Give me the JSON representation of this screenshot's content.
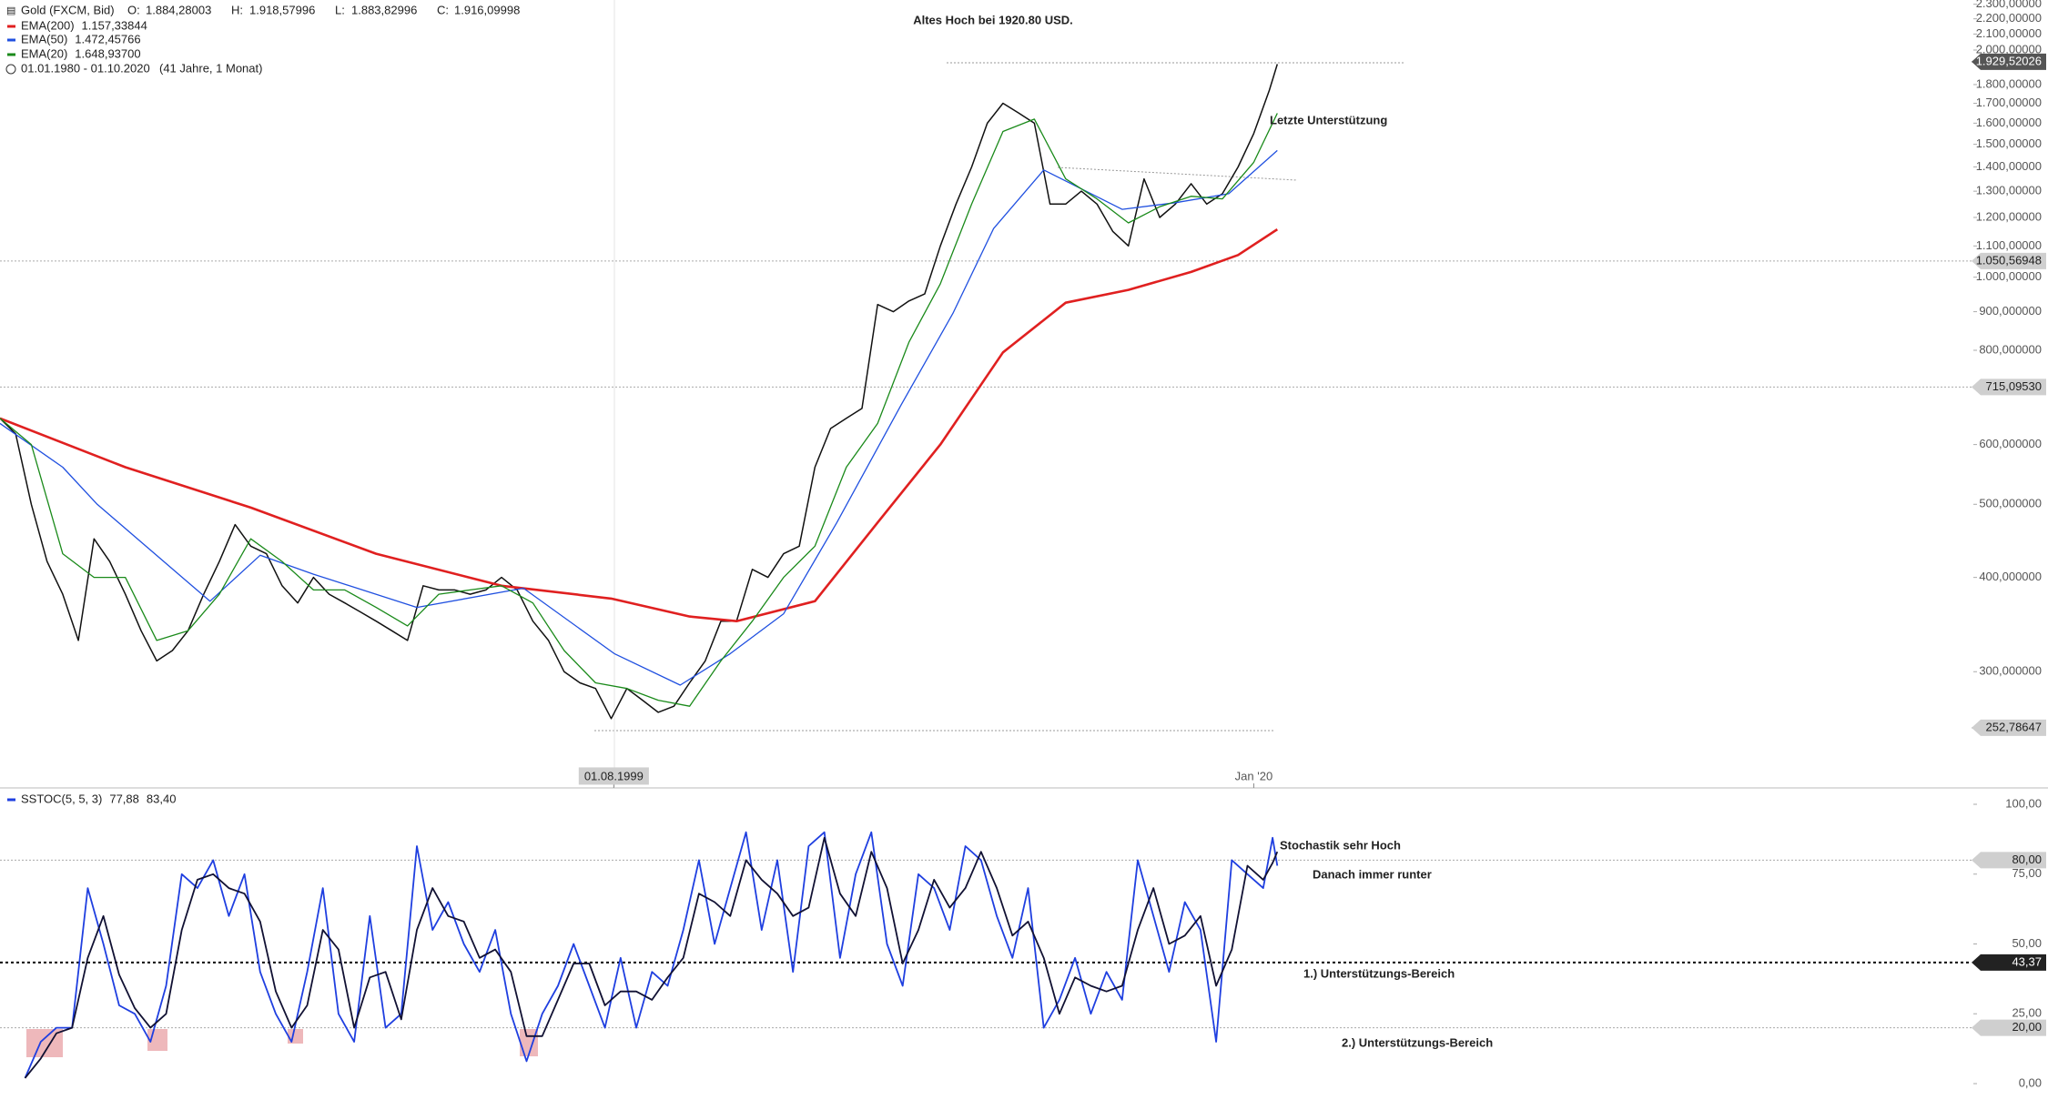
{
  "header": {
    "ohlc": [
      {
        "label": "O:",
        "value": "1.884,28003"
      },
      {
        "label": "H:",
        "value": "1.918,57996"
      },
      {
        "label": "L:",
        "value": "1.883,82996"
      },
      {
        "label": "C:",
        "value": "1.916,09998"
      }
    ],
    "range": "01.01.1980 - 01.10.2020",
    "duration": "(41 Jahre, 1 Monat)"
  },
  "chart_data": [
    {
      "type": "line",
      "log_y": true,
      "grid": false,
      "xlim": [
        1980,
        2042.9
      ],
      "ylim": [
        211,
        2330
      ],
      "xticks": [
        {
          "value": 1999.583,
          "label": "01.08.1999"
        },
        {
          "value": 2020,
          "label": "Jan '20"
        }
      ],
      "yticks": [
        {
          "value": 300,
          "label": "300,000000"
        },
        {
          "value": 400,
          "label": "400,000000"
        },
        {
          "value": 500,
          "label": "500,000000"
        },
        {
          "value": 600,
          "label": "600,000000"
        },
        {
          "value": 800,
          "label": "800,000000"
        },
        {
          "value": 900,
          "label": "900,000000"
        },
        {
          "value": 1000,
          "label": "1.000,00000"
        },
        {
          "value": 1100,
          "label": "1.100,00000"
        },
        {
          "value": 1200,
          "label": "1.200,00000"
        },
        {
          "value": 1300,
          "label": "1.300,00000"
        },
        {
          "value": 1400,
          "label": "1.400,00000"
        },
        {
          "value": 1500,
          "label": "1.500,00000"
        },
        {
          "value": 1600,
          "label": "1.600,00000"
        },
        {
          "value": 1700,
          "label": "1.700,00000"
        },
        {
          "value": 1800,
          "label": "1.800,00000"
        },
        {
          "value": 2000,
          "label": "2.000,00000"
        },
        {
          "value": 2100,
          "label": "2.100,00000"
        },
        {
          "value": 2200,
          "label": "2.200,00000"
        },
        {
          "value": 2300,
          "label": "2.300,00000"
        }
      ],
      "levels": [
        {
          "value": 1929.52026,
          "label": "1.929,52026",
          "highlight": true,
          "full_line": false
        },
        {
          "value": 1050.56948,
          "label": "1.050,56948",
          "highlight": false,
          "full_line": true
        },
        {
          "value": 715.0953,
          "label": "715,09530",
          "highlight": false,
          "full_line": true
        },
        {
          "value": 252.78647,
          "label": "252,78647",
          "highlight": false,
          "full_line": false
        }
      ],
      "annotations": [
        "Altes Hoch bei 1920.80 USD.",
        "Letzte Unterstützung"
      ],
      "series": [
        {
          "name": "Gold (FXCM, Bid)",
          "color": "#111111",
          "x": [
            1980,
            1980.5,
            1981,
            1981.5,
            1982,
            1982.5,
            1983,
            1983.5,
            1984,
            1984.5,
            1985,
            1985.5,
            1986,
            1986.5,
            1987,
            1987.5,
            1988,
            1988.5,
            1989,
            1989.5,
            1990,
            1990.5,
            1991,
            1991.5,
            1992,
            1992.5,
            1993,
            1993.5,
            1994,
            1994.5,
            1995,
            1995.5,
            1996,
            1996.5,
            1997,
            1997.5,
            1998,
            1998.5,
            1999,
            1999.5,
            2000,
            2000.5,
            2001,
            2001.5,
            2002,
            2002.5,
            2003,
            2003.5,
            2004,
            2004.5,
            2005,
            2005.5,
            2006,
            2006.5,
            2007,
            2007.5,
            2008,
            2008.5,
            2009,
            2009.5,
            2010,
            2010.5,
            2011,
            2011.5,
            2012,
            2012.5,
            2013,
            2013.5,
            2014,
            2014.5,
            2015,
            2015.5,
            2016,
            2016.5,
            2017,
            2017.5,
            2018,
            2018.5,
            2019,
            2019.5,
            2020,
            2020.5,
            2020.75
          ],
          "values": [
            650,
            620,
            500,
            420,
            380,
            330,
            450,
            420,
            380,
            340,
            310,
            320,
            340,
            380,
            420,
            470,
            440,
            430,
            390,
            370,
            400,
            380,
            370,
            360,
            350,
            340,
            330,
            390,
            385,
            385,
            380,
            385,
            400,
            385,
            350,
            330,
            300,
            290,
            285,
            260,
            285,
            275,
            265,
            270,
            290,
            310,
            350,
            350,
            410,
            400,
            430,
            440,
            560,
            630,
            650,
            670,
            920,
            900,
            930,
            950,
            1100,
            1250,
            1400,
            1600,
            1700,
            1650,
            1600,
            1250,
            1250,
            1300,
            1250,
            1150,
            1100,
            1350,
            1200,
            1250,
            1330,
            1250,
            1290,
            1400,
            1550,
            1770,
            1916
          ]
        },
        {
          "name": "EMA(200)",
          "value_label": "1.157,33844",
          "color": "#e02020",
          "width": 2.6,
          "x": [
            1980,
            1984,
            1988,
            1992,
            1996,
            1999.5,
            2002,
            2003.5,
            2006,
            2008,
            2010,
            2012,
            2014,
            2016,
            2018,
            2019.5,
            2020.75
          ],
          "values": [
            650,
            560,
            495,
            430,
            390,
            375,
            355,
            350,
            372,
            473,
            600,
            795,
            925,
            962,
            1016,
            1070,
            1157
          ]
        },
        {
          "name": "EMA(50)",
          "value_label": "1.472,45766",
          "color": "#2050e0",
          "width": 1.3,
          "x": [
            1980,
            1982,
            1983.1,
            1986.7,
            1988.3,
            1990,
            1993.3,
            1996.7,
            1999.6,
            2001.7,
            2003.3,
            2005,
            2006.7,
            2008.75,
            2010.4,
            2011.7,
            2013.3,
            2015.8,
            2017.5,
            2019.2,
            2020.75
          ],
          "values": [
            640,
            560,
            500,
            372,
            428,
            404,
            365,
            387,
            317,
            288,
            317,
            358,
            473,
            677,
            895,
            1160,
            1387,
            1230,
            1255,
            1290,
            1472
          ]
        },
        {
          "name": "EMA(20)",
          "value_label": "1.648,93700",
          "color": "#1a8a1a",
          "width": 1.3,
          "x": [
            1980,
            1981,
            1982,
            1983,
            1984,
            1985,
            1986,
            1987,
            1988,
            1989,
            1990,
            1991,
            1992,
            1993,
            1994,
            1995,
            1996,
            1997,
            1998,
            1999,
            2000,
            2001,
            2002,
            2003,
            2004,
            2005,
            2006,
            2007,
            2008,
            2009,
            2010,
            2011,
            2012,
            2013,
            2014,
            2015,
            2016,
            2017,
            2018,
            2019,
            2020,
            2020.75
          ],
          "values": [
            650,
            600,
            430,
            400,
            400,
            330,
            340,
            380,
            450,
            420,
            385,
            385,
            365,
            345,
            380,
            385,
            390,
            370,
            320,
            290,
            285,
            275,
            270,
            310,
            350,
            400,
            440,
            560,
            640,
            820,
            980,
            1250,
            1560,
            1620,
            1350,
            1270,
            1180,
            1240,
            1280,
            1270,
            1420,
            1649
          ]
        }
      ]
    },
    {
      "type": "line",
      "log_y": false,
      "grid": false,
      "xlim": [
        1980,
        2042.9
      ],
      "ylim": [
        0,
        100
      ],
      "yticks": [
        {
          "value": 0,
          "label": "0,00"
        },
        {
          "value": 25,
          "label": "25,00"
        },
        {
          "value": 50,
          "label": "50,00"
        },
        {
          "value": 75,
          "label": "75,00"
        },
        {
          "value": 100,
          "label": "100,00"
        }
      ],
      "levels": [
        {
          "value": 80,
          "label": "80,00",
          "highlight": false,
          "full_line": true
        },
        {
          "value": 43.37,
          "label": "43,37",
          "highlight": true,
          "full_line": true
        },
        {
          "value": 20,
          "label": "20,00",
          "highlight": false,
          "full_line": true
        }
      ],
      "annotations": [
        "Stochastik sehr Hoch",
        "Danach immer runter",
        "1.) Unterstützungs-Bereich",
        "2.) Unterstützungs-Bereich"
      ],
      "series": [
        {
          "name": "SSTOC(5, 5, 3)",
          "value_label": "77,88",
          "color": "#1f3fe0",
          "width": 1.8,
          "x": [
            1980.8,
            1981.3,
            1981.8,
            1982.3,
            1982.8,
            1983.3,
            1983.8,
            1984.3,
            1984.8,
            1985.3,
            1985.8,
            1986.3,
            1986.8,
            1987.3,
            1987.8,
            1988.3,
            1988.8,
            1989.3,
            1989.8,
            1990.3,
            1990.8,
            1991.3,
            1991.8,
            1992.3,
            1992.8,
            1993.3,
            1993.8,
            1994.3,
            1994.8,
            1995.3,
            1995.8,
            1996.3,
            1996.8,
            1997.3,
            1997.8,
            1998.3,
            1998.8,
            1999.3,
            1999.8,
            2000.3,
            2000.8,
            2001.3,
            2001.8,
            2002.3,
            2002.8,
            2003.3,
            2003.8,
            2004.3,
            2004.8,
            2005.3,
            2005.8,
            2006.3,
            2006.8,
            2007.3,
            2007.8,
            2008.3,
            2008.8,
            2009.3,
            2009.8,
            2010.3,
            2010.8,
            2011.3,
            2011.8,
            2012.3,
            2012.8,
            2013.3,
            2013.8,
            2014.3,
            2014.8,
            2015.3,
            2015.8,
            2016.3,
            2016.8,
            2017.3,
            2017.8,
            2018.3,
            2018.8,
            2019.3,
            2019.8,
            2020.3,
            2020.6,
            2020.75
          ],
          "values": [
            2,
            15,
            20,
            20,
            70,
            50,
            28,
            25,
            15,
            35,
            75,
            70,
            80,
            60,
            75,
            40,
            25,
            15,
            40,
            70,
            25,
            15,
            60,
            20,
            25,
            85,
            55,
            65,
            50,
            40,
            55,
            25,
            8,
            25,
            35,
            50,
            35,
            20,
            45,
            20,
            40,
            35,
            55,
            80,
            50,
            70,
            90,
            55,
            80,
            40,
            85,
            90,
            45,
            75,
            90,
            50,
            35,
            75,
            70,
            55,
            85,
            80,
            60,
            45,
            70,
            20,
            30,
            45,
            25,
            40,
            30,
            80,
            60,
            40,
            65,
            55,
            15,
            80,
            75,
            70,
            88,
            78
          ]
        },
        {
          "value_label": "83,40",
          "color": "#111133",
          "width": 1.8,
          "x": [
            1980.8,
            1981.3,
            1981.8,
            1982.3,
            1982.8,
            1983.3,
            1983.8,
            1984.3,
            1984.8,
            1985.3,
            1985.8,
            1986.3,
            1986.8,
            1987.3,
            1987.8,
            1988.3,
            1988.8,
            1989.3,
            1989.8,
            1990.3,
            1990.8,
            1991.3,
            1991.8,
            1992.3,
            1992.8,
            1993.3,
            1993.8,
            1994.3,
            1994.8,
            1995.3,
            1995.8,
            1996.3,
            1996.8,
            1997.3,
            1997.8,
            1998.3,
            1998.8,
            1999.3,
            1999.8,
            2000.3,
            2000.8,
            2001.3,
            2001.8,
            2002.3,
            2002.8,
            2003.3,
            2003.8,
            2004.3,
            2004.8,
            2005.3,
            2005.8,
            2006.3,
            2006.8,
            2007.3,
            2007.8,
            2008.3,
            2008.8,
            2009.3,
            2009.8,
            2010.3,
            2010.8,
            2011.3,
            2011.8,
            2012.3,
            2012.8,
            2013.3,
            2013.8,
            2014.3,
            2014.8,
            2015.3,
            2015.8,
            2016.3,
            2016.8,
            2017.3,
            2017.8,
            2018.3,
            2018.8,
            2019.3,
            2019.8,
            2020.3,
            2020.6,
            2020.75
          ],
          "values": [
            2,
            9,
            18,
            20,
            45,
            60,
            39,
            27,
            20,
            25,
            55,
            73,
            75,
            70,
            68,
            58,
            33,
            20,
            28,
            55,
            48,
            20,
            38,
            40,
            23,
            55,
            70,
            60,
            58,
            45,
            48,
            40,
            17,
            17,
            30,
            43,
            43,
            28,
            33,
            33,
            30,
            38,
            45,
            68,
            65,
            60,
            80,
            73,
            68,
            60,
            63,
            88,
            68,
            60,
            83,
            70,
            43,
            55,
            73,
            63,
            70,
            83,
            70,
            53,
            58,
            45,
            25,
            38,
            35,
            33,
            35,
            55,
            70,
            50,
            53,
            60,
            35,
            48,
            78,
            73,
            79,
            83
          ]
        }
      ]
    }
  ]
}
